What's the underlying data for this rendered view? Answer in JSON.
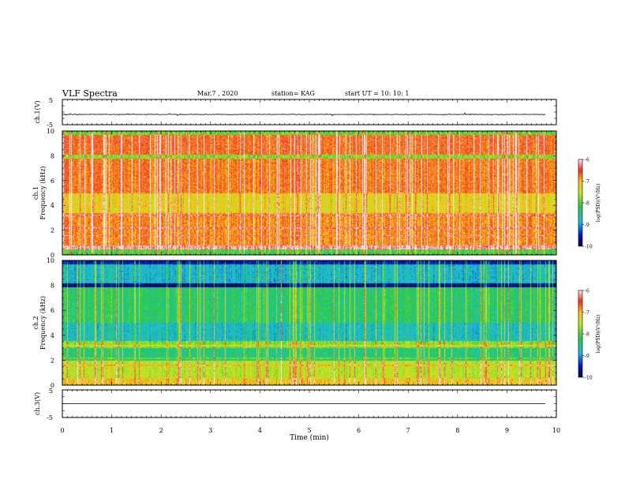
{
  "header": {
    "title": "VLF Spectra",
    "date": "Mar.7 , 2020",
    "station": "station= KAG",
    "start": "start UT = 10: 10: 1"
  },
  "chart_data": [
    {
      "type": "line",
      "panel": "ch1-waveform",
      "ylabel": "ch.1(V)",
      "ylim": [
        -5,
        5
      ],
      "yticks": [
        "5",
        "-5"
      ],
      "xlim": [
        0,
        10
      ],
      "series": [
        {
          "values": "near-zero waveform with small spikes"
        }
      ]
    },
    {
      "type": "heatmap",
      "panel": "ch1-spectrogram",
      "ylabel": "ch.1\nFrequency (kHz)",
      "ylabel_line1": "ch.1",
      "ylabel_line2": "Frequency (kHz)",
      "ylim": [
        0,
        10
      ],
      "yticks": [
        "0",
        "2",
        "4",
        "6",
        "8",
        "10"
      ],
      "xlim": [
        0,
        10
      ],
      "colorbar": {
        "label": "log(PSD)(V²/Hz)",
        "ticks": [
          "-6",
          "-7",
          "-8",
          "-9",
          "-10"
        ],
        "range": [
          -10,
          -6
        ]
      },
      "colors": {
        "high": "#e8001c",
        "mid": "#f5c000",
        "low": "#29c23a",
        "lower": "#27b8e0",
        "lowest": "#001060"
      }
    },
    {
      "type": "heatmap",
      "panel": "ch2-spectrogram",
      "ylabel_line1": "ch.2",
      "ylabel_line2": "Frequency (kHz)",
      "ylim": [
        0,
        10
      ],
      "yticks": [
        "0",
        "2",
        "4",
        "6",
        "8",
        "10"
      ],
      "xlim": [
        0,
        10
      ],
      "colorbar": {
        "label": "log(PSD)(V²/Hz)",
        "ticks": [
          "-6",
          "-7",
          "-8",
          "-9",
          "-10"
        ],
        "range": [
          -10,
          -6
        ]
      }
    },
    {
      "type": "line",
      "panel": "ch3-waveform",
      "ylabel": "ch.3(V)",
      "ylim": [
        -5,
        5
      ],
      "yticks": [
        "5",
        "-5"
      ],
      "xlim": [
        0,
        10
      ],
      "xlabel": "Time (min)",
      "xticks": [
        "0",
        "1",
        "2",
        "3",
        "4",
        "5",
        "6",
        "7",
        "8",
        "9",
        "10"
      ],
      "series": [
        {
          "values": "flat at 0"
        }
      ]
    }
  ]
}
